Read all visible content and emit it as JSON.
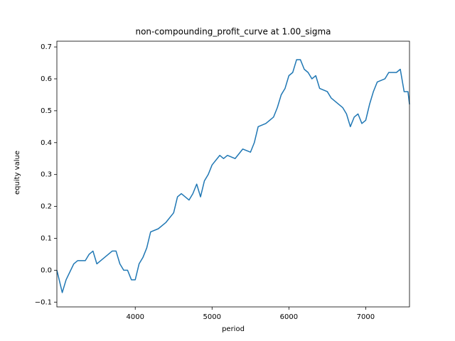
{
  "chart_data": {
    "type": "line",
    "title": "non-compounding_profit_curve at 1.00_sigma",
    "x_label": "period",
    "y_label": "equity value",
    "x": [
      2980,
      3050,
      3100,
      3200,
      3250,
      3350,
      3400,
      3450,
      3500,
      3600,
      3700,
      3750,
      3800,
      3850,
      3900,
      3950,
      4000,
      4050,
      4100,
      4150,
      4200,
      4300,
      4400,
      4500,
      4550,
      4600,
      4700,
      4750,
      4800,
      4850,
      4900,
      4950,
      5000,
      5100,
      5150,
      5200,
      5300,
      5400,
      5500,
      5550,
      5600,
      5700,
      5800,
      5850,
      5900,
      5950,
      6000,
      6050,
      6100,
      6150,
      6200,
      6250,
      6300,
      6350,
      6400,
      6500,
      6550,
      6650,
      6700,
      6750,
      6800,
      6850,
      6900,
      6950,
      7000,
      7050,
      7100,
      7150,
      7250,
      7300,
      7400,
      7450,
      7500,
      7550,
      7570
    ],
    "series": [
      {
        "name": "equity",
        "color": "#1f77b4",
        "values": [
          0.0,
          -0.07,
          -0.03,
          0.02,
          0.03,
          0.03,
          0.05,
          0.06,
          0.02,
          0.04,
          0.06,
          0.06,
          0.02,
          0.0,
          0.0,
          -0.03,
          -0.03,
          0.02,
          0.04,
          0.07,
          0.12,
          0.13,
          0.15,
          0.18,
          0.23,
          0.24,
          0.22,
          0.24,
          0.27,
          0.23,
          0.28,
          0.3,
          0.33,
          0.36,
          0.35,
          0.36,
          0.35,
          0.38,
          0.37,
          0.4,
          0.45,
          0.46,
          0.48,
          0.51,
          0.55,
          0.57,
          0.61,
          0.62,
          0.66,
          0.66,
          0.63,
          0.62,
          0.6,
          0.61,
          0.57,
          0.56,
          0.54,
          0.52,
          0.51,
          0.49,
          0.45,
          0.48,
          0.49,
          0.46,
          0.47,
          0.52,
          0.56,
          0.59,
          0.6,
          0.62,
          0.62,
          0.63,
          0.56,
          0.56,
          0.52
        ]
      }
    ],
    "xlim": [
      2980,
      7570
    ],
    "ylim": [
      -0.115,
      0.718
    ],
    "xticks": [
      4000,
      5000,
      6000,
      7000
    ],
    "yticks": [
      {
        "value": -0.1,
        "label": "−0.1"
      },
      {
        "value": 0,
        "label": "0.0"
      },
      0.1,
      0.2,
      0.3,
      0.4,
      0.5,
      0.6,
      0.7
    ],
    "grid": false
  }
}
